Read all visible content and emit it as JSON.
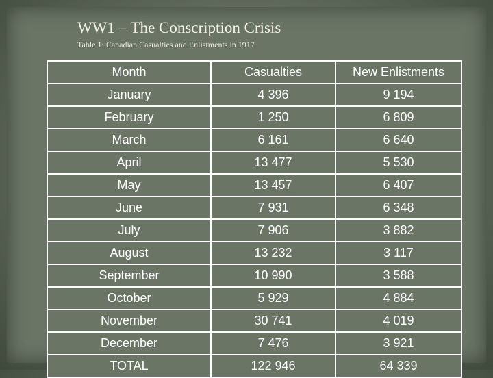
{
  "slide": {
    "title": "WW1 – The Conscription Crisis",
    "subtitle": "Table 1: Canadian Casualties and Enlistments in 1917"
  },
  "table": {
    "headers": [
      "Month",
      "Casualties",
      "New Enlistments"
    ],
    "rows": [
      [
        "January",
        "4 396",
        "9 194"
      ],
      [
        "February",
        "1 250",
        "6 809"
      ],
      [
        "March",
        "6 161",
        "6 640"
      ],
      [
        "April",
        "13 477",
        "5 530"
      ],
      [
        "May",
        "13 457",
        "6 407"
      ],
      [
        "June",
        "7 931",
        "6 348"
      ],
      [
        "July",
        "7 906",
        "3 882"
      ],
      [
        "August",
        "13 232",
        "3 117"
      ],
      [
        "September",
        "10 990",
        "3 588"
      ],
      [
        "October",
        "5 929",
        "4 884"
      ],
      [
        "November",
        "30 741",
        "4 019"
      ],
      [
        "December",
        "7 476",
        "3 921"
      ]
    ],
    "total": [
      "TOTAL",
      "122 946",
      "64 339"
    ]
  }
}
